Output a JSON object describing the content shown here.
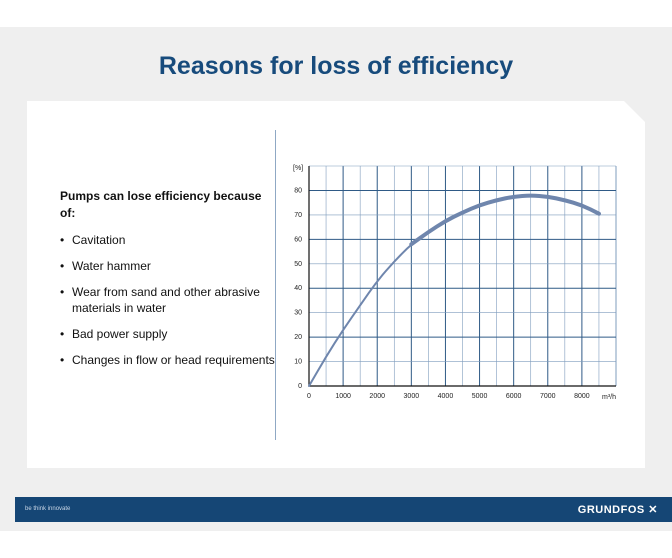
{
  "title": "Reasons for loss of efficiency",
  "intro": "Pumps can lose efficiency because of:",
  "bullets": [
    "Cavitation",
    "Water hammer",
    "Wear from sand and other abrasive materials in water",
    "Bad power supply",
    "Changes in flow or head requirements"
  ],
  "footer": {
    "tagline": "be think innovate",
    "logo": "GRUNDFOS"
  },
  "colors": {
    "brand": "#154675",
    "curve": "#6f86ad",
    "grid": "#4a6e96"
  },
  "chart_data": {
    "type": "line",
    "ylabel": "[%]",
    "xlabel": "m³/h",
    "xlim": [
      0,
      9000
    ],
    "ylim": [
      0,
      90
    ],
    "grid": true,
    "xticks": [
      0,
      1000,
      2000,
      3000,
      4000,
      5000,
      6000,
      7000,
      8000
    ],
    "yticks": [
      0,
      10,
      20,
      30,
      40,
      50,
      60,
      70,
      80
    ],
    "x": [
      0,
      500,
      1000,
      1500,
      2000,
      2500,
      3000,
      3500,
      4000,
      4500,
      5000,
      5500,
      6000,
      6500,
      7000,
      7500,
      8000,
      8500
    ],
    "y": [
      0,
      12,
      23,
      33,
      43,
      51,
      58,
      63,
      67.5,
      71,
      74,
      76,
      77.5,
      78,
      77.5,
      76,
      74,
      70.5
    ]
  }
}
